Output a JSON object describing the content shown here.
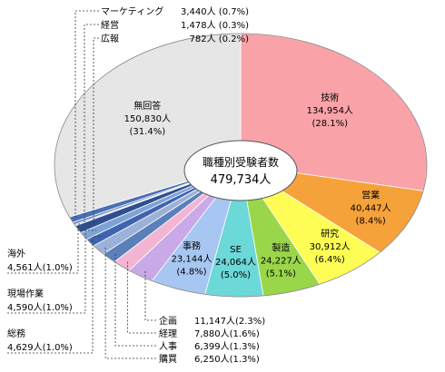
{
  "chart_data": {
    "type": "pie",
    "center_title": "職種別受験者数",
    "center_total": "479,734人",
    "slices": [
      {
        "name": "技術",
        "value": 134954,
        "value_label": "134,954人",
        "pct_label": "(28.1%)",
        "color": "#f9a3a8",
        "label_mode": "inside"
      },
      {
        "name": "営業",
        "value": 40447,
        "value_label": "40,447人",
        "pct_label": "(8.4%)",
        "color": "#f6a23a",
        "label_mode": "inside"
      },
      {
        "name": "研究",
        "value": 30912,
        "value_label": "30,912人",
        "pct_label": "(6.4%)",
        "color": "#fdfd55",
        "label_mode": "inside"
      },
      {
        "name": "製造",
        "value": 24227,
        "value_label": "24,227人",
        "pct_label": "(5.1%)",
        "color": "#9ad64a",
        "label_mode": "inside"
      },
      {
        "name": "SE",
        "value": 24064,
        "value_label": "24,064人",
        "pct_label": "(5.0%)",
        "color": "#6cd8d8",
        "label_mode": "inside"
      },
      {
        "name": "事務",
        "value": 23144,
        "value_label": "23,144人",
        "pct_label": "(4.8%)",
        "color": "#a7c7f2",
        "label_mode": "inside"
      },
      {
        "name": "企画",
        "value": 11147,
        "value_label": "11,147人",
        "pct_label": "(2.3%)",
        "color": "#c9a9e7",
        "label_mode": "right"
      },
      {
        "name": "経理",
        "value": 7880,
        "value_label": "7,880人",
        "pct_label": "(1.6%)",
        "color": "#f3b5d2",
        "label_mode": "right"
      },
      {
        "name": "人事",
        "value": 6399,
        "value_label": "6,399人",
        "pct_label": "(1.3%)",
        "color": "#5a7fb9",
        "label_mode": "right"
      },
      {
        "name": "購買",
        "value": 6250,
        "value_label": "6,250人",
        "pct_label": "(1.3%)",
        "color": "#9bb1d8",
        "label_mode": "right"
      },
      {
        "name": "総務",
        "value": 4629,
        "value_label": "4,629人",
        "pct_label": "(1.0%)",
        "color": "#3e63b0",
        "label_mode": "left"
      },
      {
        "name": "現場作業",
        "value": 4590,
        "value_label": "4,590人",
        "pct_label": "(1.0%)",
        "color": "#7fa2d6",
        "label_mode": "left"
      },
      {
        "name": "海外",
        "value": 4561,
        "value_label": "4,561人",
        "pct_label": "(1.0%)",
        "color": "#2f4f8f",
        "label_mode": "left"
      },
      {
        "name": "広報",
        "value": 782,
        "value_label": "782人",
        "pct_label": "(0.2%)",
        "color": "#b9cbe9",
        "label_mode": "top"
      },
      {
        "name": "経営",
        "value": 1478,
        "value_label": "1,478人",
        "pct_label": "(0.3%)",
        "color": "#6d88c4",
        "label_mode": "top"
      },
      {
        "name": "マーケティング",
        "value": 3440,
        "value_label": "3,440人",
        "pct_label": "(0.7%)",
        "color": "#4a6fb3",
        "label_mode": "top"
      },
      {
        "name": "無回答",
        "value": 150830,
        "value_label": "150,830人",
        "pct_label": "(31.4%)",
        "color": "#e6e6e6",
        "label_mode": "inside"
      }
    ]
  }
}
